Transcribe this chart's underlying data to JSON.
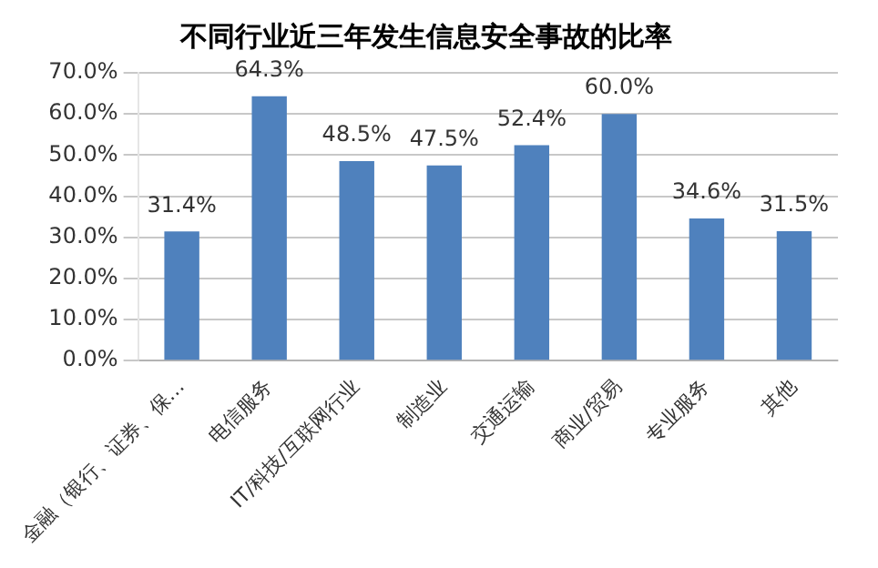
{
  "chart_data": {
    "type": "bar",
    "title": "不同行业近三年发生信息安全事故的比率",
    "categories": [
      "金融（银行、证券、保…",
      "电信服务",
      "IT/科技/互联网行业",
      "制造业",
      "交通运输",
      "商业/贸易",
      "专业服务",
      "其他"
    ],
    "values": [
      31.4,
      64.3,
      48.5,
      47.5,
      52.4,
      60.0,
      34.6,
      31.5
    ],
    "value_labels": [
      "31.4%",
      "64.3%",
      "48.5%",
      "47.5%",
      "52.4%",
      "60.0%",
      "34.6%",
      "31.5%"
    ],
    "color": "#4f81bd",
    "ylim": [
      0,
      70
    ],
    "yticks": [
      {
        "value": 0,
        "label": "0.0%"
      },
      {
        "value": 10,
        "label": "10.0%"
      },
      {
        "value": 20,
        "label": "20.0%"
      },
      {
        "value": 30,
        "label": "30.0%"
      },
      {
        "value": 40,
        "label": "40.0%"
      },
      {
        "value": 50,
        "label": "50.0%"
      },
      {
        "value": 60,
        "label": "60.0%"
      },
      {
        "value": 70,
        "label": "70.0%"
      }
    ],
    "grid": "y",
    "legend": false
  }
}
